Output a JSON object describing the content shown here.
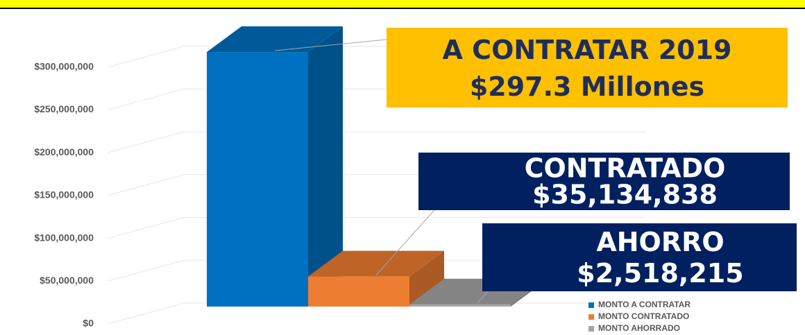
{
  "chart_data": {
    "type": "bar",
    "series": [
      {
        "name": "MONTO A CONTRATAR",
        "color": "#0070c0",
        "values": [
          297300000
        ],
        "value_labels": [
          "$297.3 Millones"
        ],
        "label_title": "A CONTRATAR 2019"
      },
      {
        "name": "MONTO CONTRATADO",
        "color": "#ed7d31",
        "values": [
          35134838
        ],
        "value_labels": [
          "$35,134,838"
        ],
        "label_title": "CONTRATADO"
      },
      {
        "name": "MONTO AHORRADO",
        "color": "#a5a5a5",
        "values": [
          2518215
        ],
        "value_labels": [
          "$2,518,215"
        ],
        "label_title": "AHORRO"
      }
    ],
    "ylim": [
      0,
      350000000
    ],
    "yticks": [
      {
        "value": 0,
        "label": "$0"
      },
      {
        "value": 50000000,
        "label": "$50,000,000"
      },
      {
        "value": 100000000,
        "label": "$100,000,000"
      },
      {
        "value": 150000000,
        "label": "$150,000,000"
      },
      {
        "value": 200000000,
        "label": "$200,000,000"
      },
      {
        "value": 250000000,
        "label": "$250,000,000"
      },
      {
        "value": 300000000,
        "label": "$300,000,000"
      }
    ],
    "grid": true,
    "legend": "lower right"
  }
}
